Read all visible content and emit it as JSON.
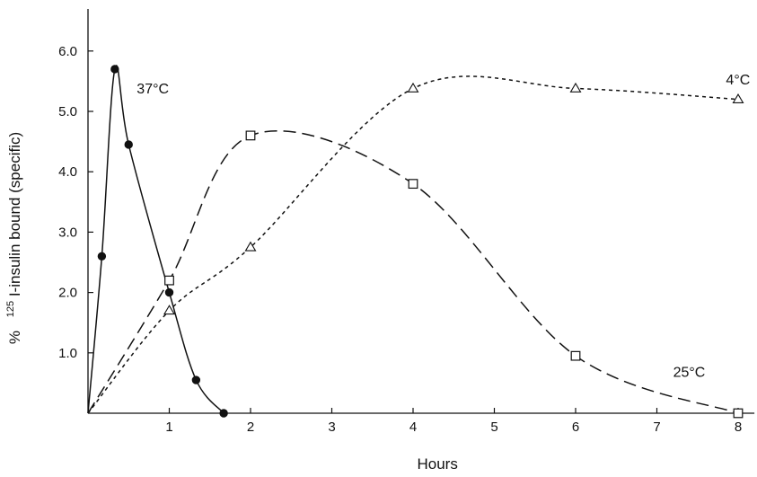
{
  "chart_data": {
    "type": "line",
    "xlabel": "Hours",
    "ylabel_prefix": "%",
    "ylabel_superscript": "125",
    "ylabel_main": "I-insulin bound (specific)",
    "xlim": [
      0,
      8.2
    ],
    "ylim": [
      0,
      7.0
    ],
    "x_ticks": [
      1,
      2,
      3,
      4,
      5,
      6,
      7,
      8
    ],
    "x_tick_labels": [
      "1",
      "2",
      "3",
      "4",
      "5",
      "6",
      "7",
      "8"
    ],
    "y_ticks": [
      1,
      2,
      3,
      4,
      5,
      6
    ],
    "y_tick_labels": [
      "1.0",
      "2.0",
      "3.0",
      "4.0",
      "5.0",
      "6.0"
    ],
    "grid": false,
    "legend": "none",
    "series": [
      {
        "name": "37°C",
        "marker": "filled-circle",
        "line": "solid",
        "points": [
          [
            0,
            0
          ],
          [
            0.17,
            2.6
          ],
          [
            0.33,
            5.7
          ],
          [
            0.5,
            4.45
          ],
          [
            1.0,
            2.0
          ],
          [
            1.33,
            0.55
          ],
          [
            1.67,
            0.0
          ]
        ],
        "label_at": [
          0.6,
          5.3
        ]
      },
      {
        "name": "25°C",
        "marker": "open-square",
        "line": "long-dash",
        "points": [
          [
            0,
            0
          ],
          [
            1.0,
            2.2
          ],
          [
            2.0,
            4.6
          ],
          [
            4.0,
            3.8
          ],
          [
            6.0,
            0.95
          ],
          [
            8.0,
            0.0
          ]
        ],
        "label_at": [
          7.2,
          0.6
        ]
      },
      {
        "name": "4°C",
        "marker": "open-triangle",
        "line": "short-dash",
        "points": [
          [
            0,
            0
          ],
          [
            1.0,
            1.7
          ],
          [
            2.0,
            2.75
          ],
          [
            4.0,
            5.38
          ],
          [
            6.0,
            5.38
          ],
          [
            8.0,
            5.2
          ]
        ],
        "label_at": [
          7.85,
          5.45
        ]
      }
    ]
  }
}
